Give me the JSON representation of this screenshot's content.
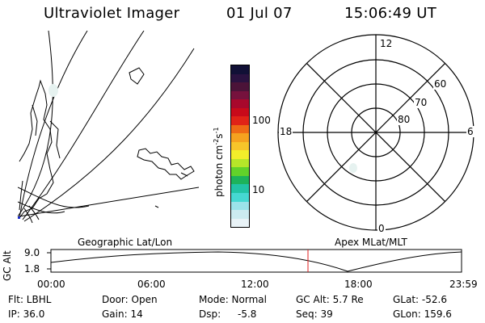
{
  "header": {
    "instrument": "Ultraviolet Imager",
    "date": "01 Jul 07",
    "time": "15:06:49 UT"
  },
  "colorbar": {
    "unit_label": "photon cm",
    "unit_exp1": "-2",
    "unit_mid": "s",
    "unit_exp2": "-1",
    "tick_100": "100",
    "tick_10": "10",
    "colors": [
      "#e9f3f7",
      "#ccebf0",
      "#9be3ea",
      "#46d8d2",
      "#22c4a5",
      "#1db35a",
      "#62d22a",
      "#b6e629",
      "#f2ee2a",
      "#f7c52a",
      "#f5a21f",
      "#ee6a15",
      "#e02317",
      "#c80a1a",
      "#a8082c",
      "#76123d",
      "#4b1338",
      "#2a1240",
      "#111036"
    ]
  },
  "polar_plot": {
    "label_12": "12",
    "label_18": "18",
    "label_6": "6",
    "label_0": "0",
    "label_60": "60",
    "label_70": "70",
    "label_80": "80"
  },
  "map_labels": {
    "geographic": "Geographic Lat/Lon",
    "apex": "Apex MLat/MLT"
  },
  "altitude_plot": {
    "ylabel": "GC Alt",
    "y_top": "9.0",
    "y_bottom": "1.8",
    "x_ticks": [
      "00:00",
      "06:00",
      "12:00",
      "18:00",
      "23:59"
    ]
  },
  "info": {
    "row1": {
      "flt": "Flt: LBHL",
      "door": "Door: Open",
      "mode": "Mode: Normal",
      "gcalt": "GC Alt: 5.7 Re",
      "glat": "GLat: -52.6"
    },
    "row2": {
      "ip": "IP: 36.0",
      "gain": "Gain: 14",
      "dsp_label": "Dsp:",
      "dsp_value": "-5.8",
      "seq": "Seq: 39",
      "glon": "GLon: 159.6"
    }
  }
}
